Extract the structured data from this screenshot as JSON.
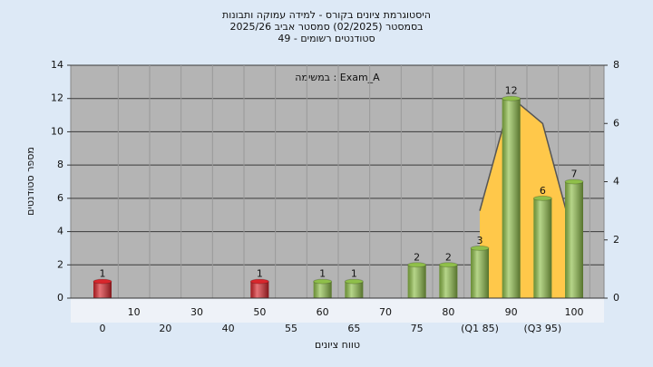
{
  "chart_data": {
    "type": "bar",
    "title": "היסטוגרמת ציונים בקורס - למידה עמוקה ותבונות",
    "subtitle": [
      "בסמסטר  (02/2025)  סמסטר אביב 2025/26",
      "סטודנטים רשומים - 49"
    ],
    "annotation": "במשימה : Exam_A",
    "x_label": "טווח ציונים",
    "y_label": "מספר סטודנטים",
    "categories": [
      "0",
      "10",
      "20",
      "30",
      "40",
      "50",
      "55",
      "60",
      "65",
      "70",
      "75",
      "80",
      "(Q1 85)",
      "90",
      "(Q3 95)",
      "100"
    ],
    "values": [
      1,
      0,
      0,
      0,
      0,
      1,
      0,
      1,
      1,
      0,
      2,
      2,
      3,
      12,
      6,
      7
    ],
    "colors": [
      "#d9262c",
      "#d9262c",
      "#d9262c",
      "#d9262c",
      "#d9262c",
      "#d9262c",
      "#8fbf4a",
      "#8fbf4a",
      "#8fbf4a",
      "#8fbf4a",
      "#8fbf4a",
      "#8fbf4a",
      "#8fbf4a",
      "#8fbf4a",
      "#8fbf4a",
      "#8fbf4a"
    ],
    "area": {
      "axis": "y2",
      "color": "#ffc84a",
      "line_color": "#555555",
      "values": [
        null,
        null,
        null,
        null,
        null,
        null,
        null,
        null,
        null,
        null,
        null,
        null,
        3,
        6.9,
        6,
        2
      ]
    },
    "ylim": [
      0,
      14
    ],
    "yticks": [
      0,
      2,
      4,
      6,
      8,
      10,
      12,
      14
    ],
    "y2lim": [
      0,
      8
    ],
    "y2ticks": [
      0,
      2,
      4,
      6,
      8
    ],
    "grid": true
  }
}
